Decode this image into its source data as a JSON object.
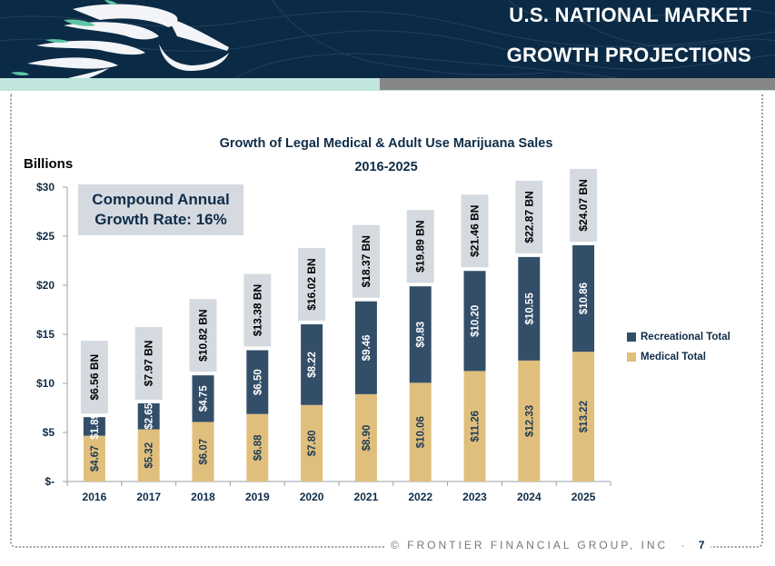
{
  "header": {
    "title_line1": "U.S. NATIONAL MARKET",
    "title_line2": "GROWTH PROJECTIONS",
    "logo": "horse-head-logo-icon"
  },
  "colors": {
    "banner": "#0b2a45",
    "recreational": "#334e68",
    "medical": "#e0bf7c",
    "total_label_bg": "#d5d9e0",
    "title_text": "#0f2d48"
  },
  "callout": {
    "line1": "Compound Annual",
    "line2": "Growth Rate: 16%"
  },
  "footer": {
    "copyright": "© FRONTIER FINANCIAL GROUP, INC",
    "separator": "·",
    "page_number": "7"
  },
  "chart_data": {
    "type": "bar",
    "stacked": true,
    "title": "Growth of Legal Medical & Adult Use Marijuana Sales",
    "subtitle": "2016-2025",
    "xlabel": "",
    "ylabel": "Billions",
    "ylim": [
      0,
      30
    ],
    "yticks": [
      0,
      5,
      10,
      15,
      20,
      25,
      30
    ],
    "ytick_labels": [
      "$-",
      "$5",
      "$10",
      "$15",
      "$20",
      "$25",
      "$30"
    ],
    "grid": false,
    "legend_position": "right",
    "categories": [
      "2016",
      "2017",
      "2018",
      "2019",
      "2020",
      "2021",
      "2022",
      "2023",
      "2024",
      "2025"
    ],
    "series": [
      {
        "name": "Medical Total",
        "values": [
          4.67,
          5.32,
          6.07,
          6.88,
          7.8,
          8.9,
          10.06,
          11.26,
          12.33,
          13.22
        ],
        "labels": [
          "$4.67",
          "$5.32",
          "$6.07",
          "$6.88",
          "$7.80",
          "$8.90",
          "$10.06",
          "$11.26",
          "$12.33",
          "$13.22"
        ]
      },
      {
        "name": "Recreational Total",
        "values": [
          1.89,
          2.65,
          4.75,
          6.5,
          8.22,
          9.46,
          9.83,
          10.2,
          10.55,
          10.86
        ],
        "labels": [
          "$1.89",
          "$2.65",
          "$4.75",
          "$6.50",
          "$8.22",
          "$9.46",
          "$9.83",
          "$10.20",
          "$10.55",
          "$10.86"
        ]
      }
    ],
    "totals": [
      6.56,
      7.97,
      10.82,
      13.38,
      16.02,
      18.37,
      19.89,
      21.46,
      22.87,
      24.07
    ],
    "total_labels": [
      "$6.56 BN",
      "$7.97 BN",
      "$10.82 BN",
      "$13.38 BN",
      "$16.02 BN",
      "$18.37 BN",
      "$19.89 BN",
      "$21.46 BN",
      "$22.87 BN",
      "$24.07 BN"
    ],
    "legend": [
      "Recreational Total",
      "Medical Total"
    ]
  }
}
